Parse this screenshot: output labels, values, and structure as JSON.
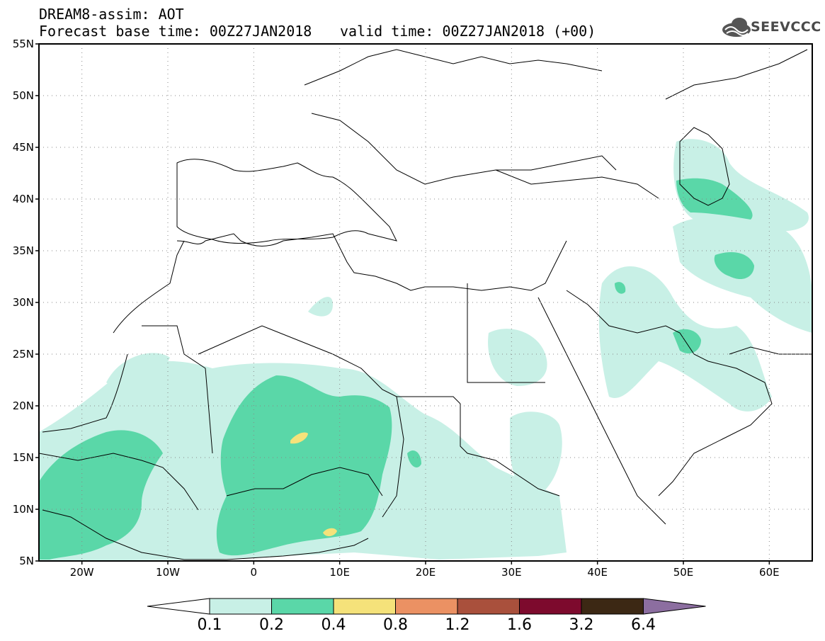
{
  "header": {
    "line1": "DREAM8-assim: AOT",
    "line2": "Forecast base time: 00Z27JAN2018",
    "line2b": "valid time: 00Z27JAN2018 (+00)",
    "logo_text": "SEEVCCC"
  },
  "map": {
    "lon_range": [
      -25,
      65
    ],
    "lat_range": [
      5,
      55
    ],
    "lat_labels": [
      "55N",
      "50N",
      "45N",
      "40N",
      "35N",
      "30N",
      "25N",
      "20N",
      "15N",
      "10N",
      "5N"
    ],
    "lon_labels": [
      "20W",
      "10W",
      "0",
      "10E",
      "20E",
      "30E",
      "40E",
      "50E",
      "60E"
    ],
    "grid": "dotted"
  },
  "colorbar": {
    "levels": [
      "0.1",
      "0.2",
      "0.4",
      "0.8",
      "1.2",
      "1.6",
      "3.2",
      "6.4"
    ],
    "colors": [
      "#ffffff",
      "#c8f0e6",
      "#5ad7a8",
      "#f5e27a",
      "#eb9163",
      "#a9503c",
      "#7d0a2d",
      "#3c2814",
      "#8c6ea0"
    ]
  }
}
